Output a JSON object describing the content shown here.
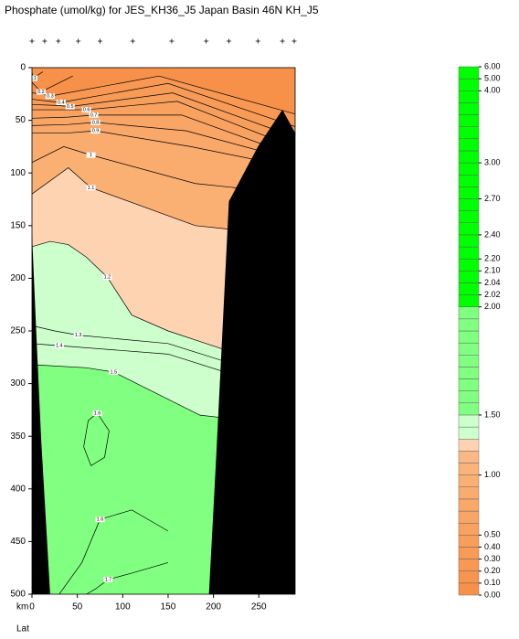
{
  "chart_data": {
    "type": "contour",
    "title": "Phosphate (umol/kg) for JES_KH36_J5 Japan Basin 46N KH_J5",
    "x_label": "km",
    "x2_label": "Lat",
    "xlim": [
      0,
      290
    ],
    "ylim": [
      0,
      500
    ],
    "y_reversed": true,
    "xticks": [
      0,
      50,
      100,
      150,
      200,
      250
    ],
    "yticks": [
      0,
      50,
      100,
      150,
      200,
      250,
      300,
      350,
      400,
      450,
      500
    ],
    "background": "#f7914a",
    "stations": [
      0,
      14,
      29,
      51,
      75,
      111,
      154,
      192,
      217,
      249,
      276,
      289
    ],
    "contours": [
      {
        "level": 0.1,
        "x": [
          0,
          1,
          12
        ],
        "y": [
          4,
          10,
          4
        ]
      },
      {
        "level": 0.2,
        "x": [
          0,
          10,
          45
        ],
        "y": [
          14,
          23,
          8
        ]
      },
      {
        "level": 0.3,
        "color": "#f89853",
        "x": [
          0,
          10,
          20,
          140,
          290
        ],
        "y": [
          24,
          25,
          27,
          8,
          44
        ]
      },
      {
        "level": 0.4,
        "color": "#f89b57",
        "x": [
          0,
          20,
          32,
          150,
          290
        ],
        "y": [
          30,
          32,
          33,
          15,
          56
        ]
      },
      {
        "level": 0.5,
        "color": "#f89e5b",
        "x": [
          0,
          30,
          42,
          155,
          290
        ],
        "y": [
          35,
          36,
          37,
          24,
          66
        ]
      },
      {
        "level": 0.6,
        "color": "#f9a260",
        "x": [
          0,
          40,
          60,
          160,
          290
        ],
        "y": [
          40,
          40,
          40,
          32,
          76
        ]
      },
      {
        "level": 0.7,
        "color": "#f9a565",
        "x": [
          0,
          40,
          68,
          165,
          290
        ],
        "y": [
          48,
          47,
          45,
          45,
          84
        ]
      },
      {
        "level": 0.8,
        "color": "#f9a86a",
        "x": [
          0,
          40,
          70,
          170,
          290
        ],
        "y": [
          55,
          54,
          52,
          60,
          88
        ]
      },
      {
        "level": 0.9,
        "color": "#faab6e",
        "x": [
          0,
          40,
          70,
          175,
          290
        ],
        "y": [
          62,
          62,
          60,
          75,
          95
        ]
      },
      {
        "level": 1,
        "color": "#faaf73",
        "x": [
          0,
          35,
          65,
          180,
          290
        ],
        "y": [
          90,
          75,
          83,
          110,
          120
        ]
      },
      {
        "level": 1.1,
        "color": "#fed3b2",
        "x": [
          0,
          40,
          65,
          180,
          290
        ],
        "y": [
          120,
          95,
          114,
          150,
          160
        ]
      },
      {
        "level": 1.2,
        "color": "#ccffcc",
        "x": [
          0,
          20,
          40,
          60,
          83,
          110,
          150,
          185,
          290
        ],
        "y": [
          170,
          165,
          168,
          180,
          199,
          235,
          250,
          260,
          290
        ]
      },
      {
        "level": 1.3,
        "x": [
          0,
          25,
          51,
          150,
          290
        ],
        "y": [
          245,
          250,
          254,
          262,
          300
        ]
      },
      {
        "level": 1.4,
        "x": [
          0,
          15,
          30,
          150,
          290
        ],
        "y": [
          262,
          263,
          264,
          272,
          310
        ]
      },
      {
        "level": 1.5,
        "color": "#80ff80",
        "x": [
          0,
          60,
          90,
          185,
          290
        ],
        "y": [
          282,
          285,
          289,
          330,
          340
        ]
      },
      {
        "level": 1.6,
        "x": [
          65,
          57,
          62,
          72,
          85,
          80,
          65
        ],
        "y": [
          378,
          360,
          335,
          328,
          345,
          370,
          378
        ]
      },
      {
        "level": 1.6,
        "x": [
          30,
          55,
          75,
          110,
          150
        ],
        "y": [
          500,
          470,
          429,
          420,
          440
        ]
      },
      {
        "level": 1.7,
        "x": [
          60,
          70,
          84,
          110,
          150
        ],
        "y": [
          500,
          495,
          486,
          480,
          470
        ]
      }
    ],
    "bathymetry": [
      {
        "x": [
          290,
          276,
          249,
          217,
          208,
          203,
          195,
          290
        ],
        "y": [
          62,
          40,
          75,
          127,
          283,
          370,
          500,
          500
        ]
      },
      {
        "x": [
          0,
          5,
          10,
          20,
          0
        ],
        "y": [
          157,
          257,
          351,
          500,
          500
        ]
      }
    ],
    "colorbar": {
      "levels": [
        0,
        0.1,
        0.2,
        0.3,
        0.4,
        0.5,
        0.6,
        0.7,
        0.8,
        0.9,
        1.0,
        1.1,
        1.2,
        1.3,
        1.4,
        1.5,
        1.6,
        1.65,
        1.7,
        1.75,
        1.8,
        1.85,
        1.9,
        1.95,
        2.0,
        2.02,
        2.04,
        2.1,
        2.2,
        2.3,
        2.4,
        2.5,
        2.6,
        2.7,
        2.8,
        2.9,
        3.0,
        3.2,
        3.4,
        3.6,
        3.8,
        3.9,
        4.0,
        5.0,
        6.0
      ],
      "colors": [
        "#f7914a",
        "#f7944e",
        "#f89853",
        "#f89b57",
        "#f89e5b",
        "#f9a260",
        "#f9a565",
        "#f9a86a",
        "#faab6e",
        "#faaf73",
        "#fab47b",
        "#fbb884",
        "#fed3b2",
        "#ccffcc",
        "#ccffcc",
        "#80ff80",
        "#80ff80",
        "#80ff80",
        "#80ff80",
        "#80ff80",
        "#80ff80",
        "#80ff80",
        "#80ff80",
        "#80ff80",
        "#00ff00",
        "#00ff00",
        "#00ff00",
        "#00ff00",
        "#00ff00",
        "#00ff00",
        "#00ff00",
        "#00ff00",
        "#00ff00",
        "#00ff00",
        "#00ff00",
        "#00ff00",
        "#00ff00",
        "#00ff00",
        "#00ff00",
        "#00ff00",
        "#00ff00",
        "#00ff00",
        "#00ff00",
        "#00ff00"
      ],
      "ticks": [
        {
          "value": 0,
          "label": "0.00"
        },
        {
          "value": 0.1,
          "label": "0.10"
        },
        {
          "value": 0.2,
          "label": "0.20"
        },
        {
          "value": 0.3,
          "label": "0.30"
        },
        {
          "value": 0.4,
          "label": "0.40"
        },
        {
          "value": 0.5,
          "label": "0.50"
        },
        {
          "value": 1,
          "label": "1.00"
        },
        {
          "value": 1.5,
          "label": "1.50"
        },
        {
          "value": 2,
          "label": "2.00"
        },
        {
          "value": 2.02,
          "label": "2.02"
        },
        {
          "value": 2.04,
          "label": "2.04"
        },
        {
          "value": 2.1,
          "label": "2.10"
        },
        {
          "value": 2.2,
          "label": "2.20"
        },
        {
          "value": 2.4,
          "label": "2.40"
        },
        {
          "value": 2.7,
          "label": "2.70"
        },
        {
          "value": 3,
          "label": "3.00"
        },
        {
          "value": 4,
          "label": "4.00"
        },
        {
          "value": 5,
          "label": "5.00"
        },
        {
          "value": 6,
          "label": "6.00"
        }
      ]
    }
  }
}
